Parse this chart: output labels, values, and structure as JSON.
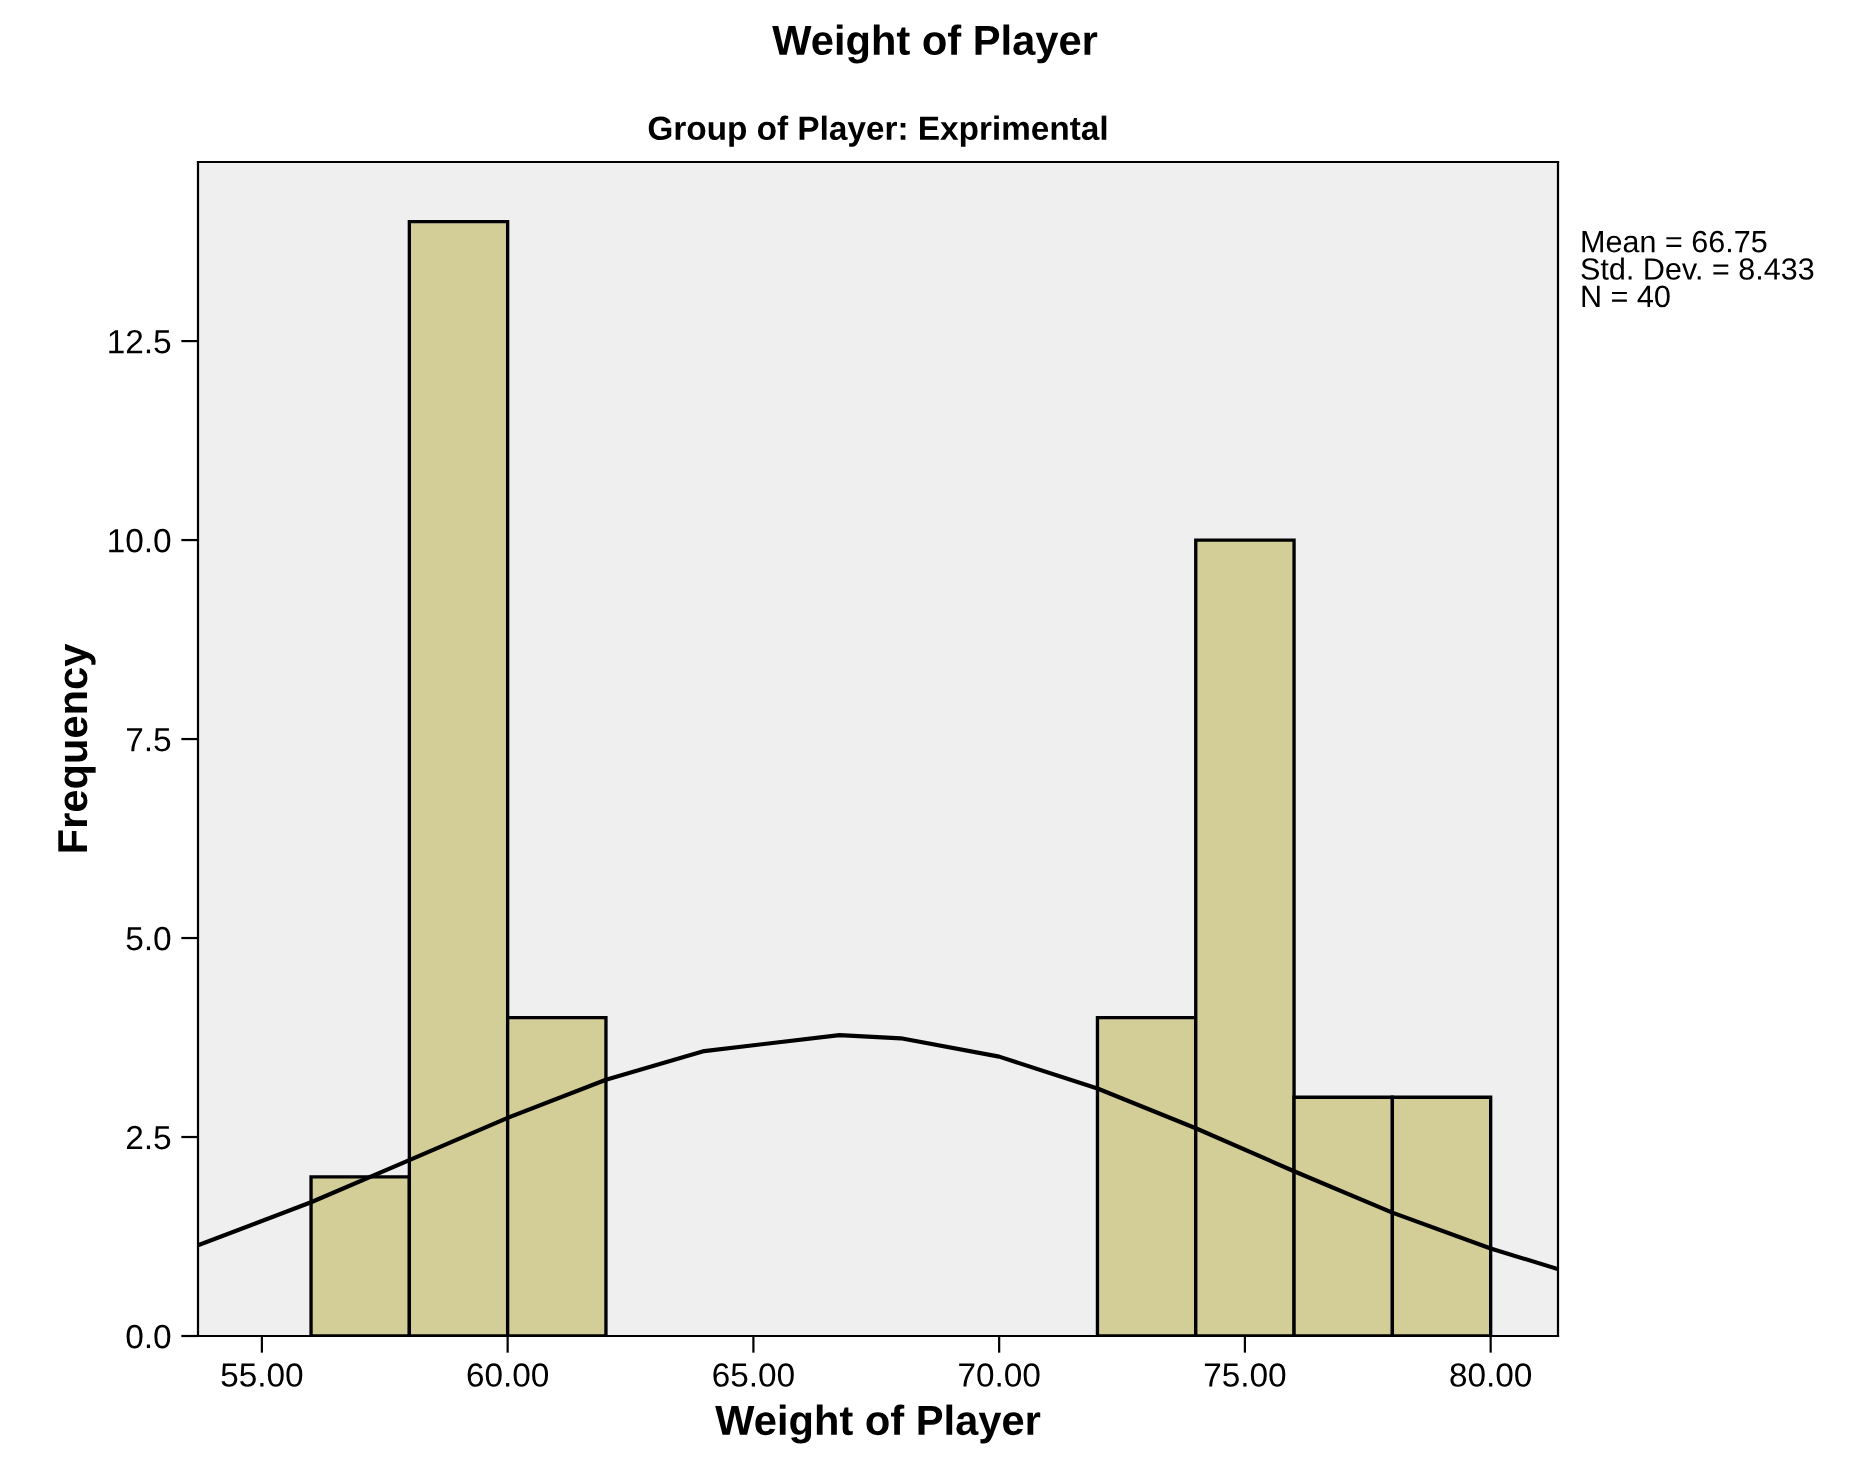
{
  "chart_data": {
    "type": "histogram",
    "title": "Weight of Player",
    "subtitle": "Group of Player: Exprimental",
    "xlabel": "Weight of Player",
    "ylabel": "Frequency",
    "bins": [
      56,
      58,
      60,
      62,
      64,
      66,
      68,
      70,
      72,
      74,
      76,
      78,
      80
    ],
    "values": [
      2,
      14,
      4,
      0,
      0,
      0,
      0,
      0,
      4,
      10,
      3,
      3
    ],
    "color": "#d3cd97",
    "series": [
      {
        "type": "line",
        "color": "#000000",
        "x": [
          53.7,
          56,
          58,
          60,
          62,
          64,
          66.75,
          68,
          70,
          72,
          74,
          76,
          78,
          80,
          81.37
        ],
        "values": [
          1.14,
          1.68,
          2.21,
          2.74,
          3.22,
          3.58,
          3.78,
          3.74,
          3.51,
          3.11,
          2.61,
          2.07,
          1.55,
          1.1,
          0.84
        ]
      }
    ],
    "xlim": [
      53.7,
      81.37
    ],
    "ylim": [
      0,
      14.75
    ],
    "xticks": [
      {
        "value": 55,
        "label": "55.00"
      },
      {
        "value": 60,
        "label": "60.00"
      },
      {
        "value": 65,
        "label": "65.00"
      },
      {
        "value": 70,
        "label": "70.00"
      },
      {
        "value": 75,
        "label": "75.00"
      },
      {
        "value": 80,
        "label": "80.00"
      }
    ],
    "yticks": [
      {
        "value": 0,
        "label": "0.0"
      },
      {
        "value": 2.5,
        "label": "2.5"
      },
      {
        "value": 5,
        "label": "5.0"
      },
      {
        "value": 7.5,
        "label": "7.5"
      },
      {
        "value": 10,
        "label": "10.0"
      },
      {
        "value": 12.5,
        "label": "12.5"
      }
    ],
    "annotations": [
      "Mean = 66.75\nStd. Dev. = 8.433\nN = 40"
    ],
    "grid": false,
    "legend": false
  }
}
